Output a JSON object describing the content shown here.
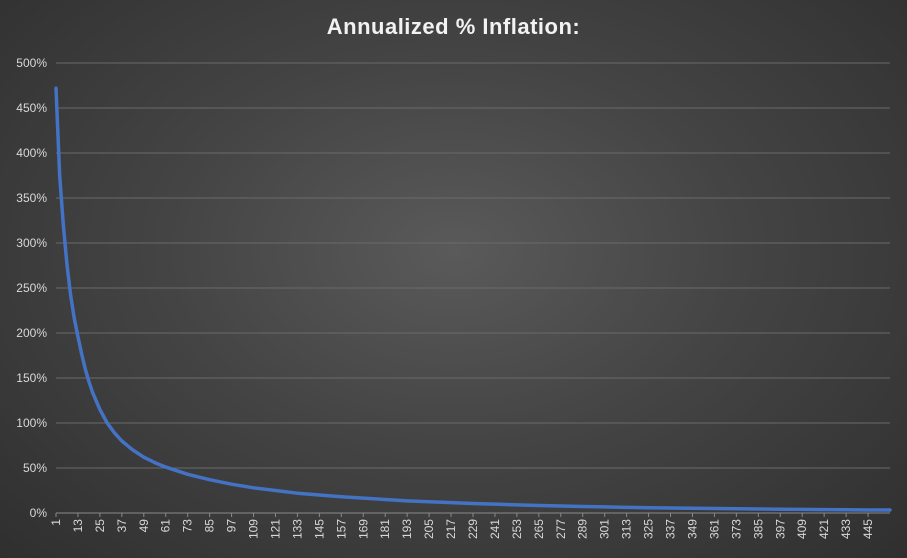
{
  "chart_data": {
    "type": "line",
    "title": "Annualized % Inflation:",
    "xlabel": "",
    "ylabel": "",
    "ylim": [
      0,
      500
    ],
    "y_tick_labels": [
      "0%",
      "50%",
      "100%",
      "150%",
      "200%",
      "250%",
      "300%",
      "350%",
      "400%",
      "450%",
      "500%"
    ],
    "x_tick_labels": [
      "1",
      "13",
      "25",
      "37",
      "49",
      "61",
      "73",
      "85",
      "97",
      "109",
      "121",
      "133",
      "145",
      "157",
      "169",
      "181",
      "193",
      "205",
      "217",
      "229",
      "241",
      "253",
      "265",
      "277",
      "289",
      "301",
      "313",
      "325",
      "337",
      "349",
      "361",
      "373",
      "385",
      "397",
      "409",
      "421",
      "433",
      "445"
    ],
    "xlim": [
      1,
      457
    ],
    "grid": true,
    "legend": "none",
    "line_color": "#4472c4",
    "series": [
      {
        "x": [
          1,
          3,
          5,
          7,
          9,
          11,
          13,
          15,
          17,
          19,
          21,
          25,
          29,
          33,
          37,
          43,
          49,
          55,
          61,
          73,
          85,
          97,
          109,
          121,
          133,
          145,
          157,
          169,
          181,
          193,
          205,
          217,
          229,
          241,
          253,
          265,
          277,
          289,
          301,
          313,
          325,
          337,
          349,
          361,
          373,
          385,
          397,
          409,
          421,
          433,
          445,
          457
        ],
        "values": [
          472,
          375,
          320,
          276,
          242,
          216,
          196,
          177,
          160,
          146,
          134,
          115,
          100,
          89,
          80,
          70,
          62,
          56,
          51,
          43,
          37,
          32,
          28,
          25,
          22,
          20,
          18,
          16.5,
          15,
          13.5,
          12.5,
          11.5,
          10.5,
          9.8,
          9.0,
          8.4,
          7.8,
          7.2,
          6.8,
          6.3,
          5.9,
          5.6,
          5.3,
          5.0,
          4.7,
          4.5,
          4.2,
          4.0,
          3.8,
          3.6,
          3.4,
          3.3
        ]
      }
    ]
  }
}
